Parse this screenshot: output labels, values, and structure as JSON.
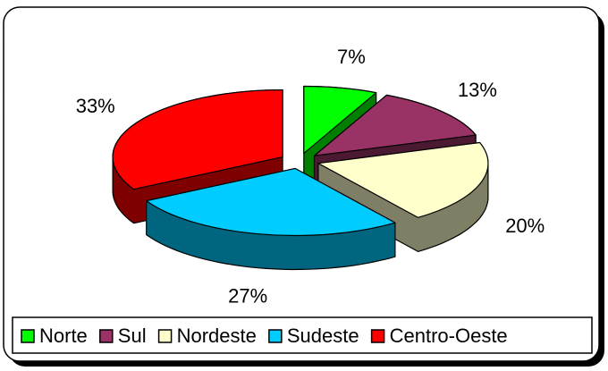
{
  "chart_data": {
    "type": "pie",
    "categories": [
      "Norte",
      "Sul",
      "Nordeste",
      "Sudeste",
      "Centro-Oeste"
    ],
    "values": [
      7,
      13,
      20,
      27,
      33
    ],
    "value_labels": [
      "7%",
      "13%",
      "20%",
      "27%",
      "33%"
    ],
    "colors": [
      "#00ff00",
      "#993366",
      "#ffffcc",
      "#00ccff",
      "#ff0000"
    ],
    "legend": "bottom",
    "three_d": true,
    "exploded": true
  }
}
